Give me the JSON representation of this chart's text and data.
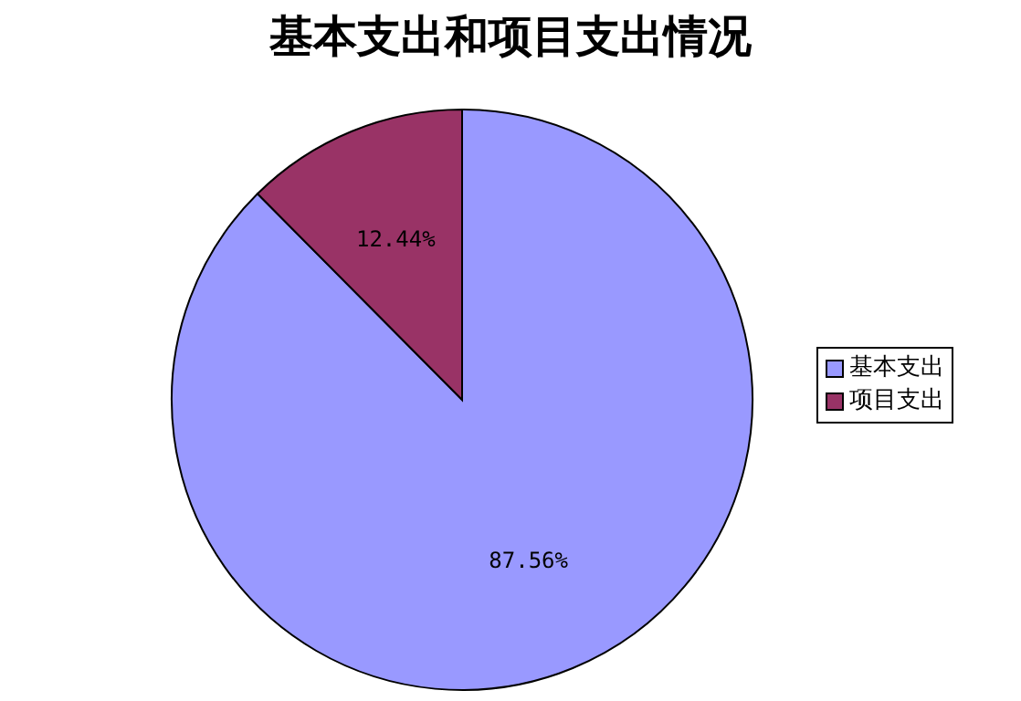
{
  "chart_data": {
    "type": "pie",
    "title": "基本支出和项目支出情况",
    "categories": [
      "基本支出",
      "项目支出"
    ],
    "values": [
      87.56,
      12.44
    ],
    "colors": [
      "#9999ff",
      "#993366"
    ],
    "value_labels": [
      "87.56%",
      "12.44%"
    ],
    "legend": "right"
  }
}
